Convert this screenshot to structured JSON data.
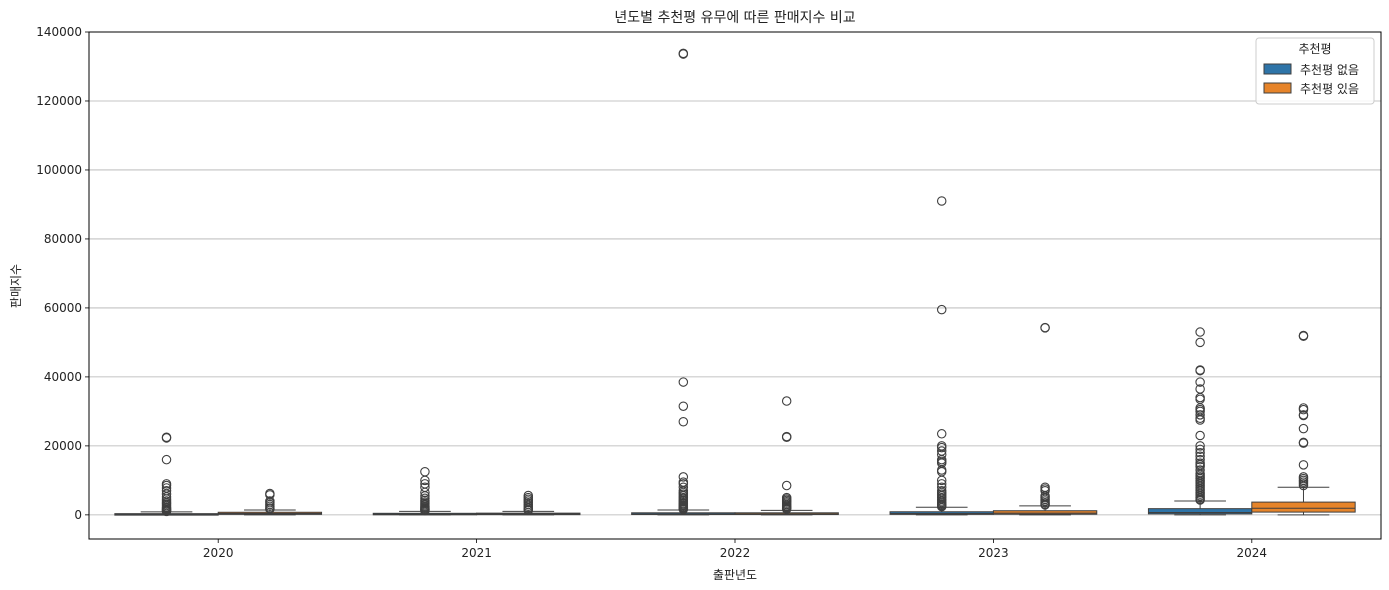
{
  "chart_data": {
    "type": "box",
    "title": "년도별 추천평 유무에 따른 판매지수 비교",
    "xlabel": "출판년도",
    "ylabel": "판매지수",
    "categories": [
      "2020",
      "2021",
      "2022",
      "2023",
      "2024"
    ],
    "ylim": [
      -7000,
      140000
    ],
    "yticks": [
      0,
      20000,
      40000,
      60000,
      80000,
      100000,
      120000,
      140000
    ],
    "ytick_labels": [
      "0",
      "20000",
      "40000",
      "60000",
      "80000",
      "100000",
      "120000",
      "140000"
    ],
    "grid": "horizontal",
    "legend": {
      "title": "추천평",
      "placement": "top-right"
    },
    "series": [
      {
        "name": "추천평 없음",
        "color": "#2e74a8",
        "boxes": [
          {
            "q1": 50,
            "median": 150,
            "q3": 350,
            "whisker_low": 0,
            "whisker_high": 850,
            "outliers": [
              22500,
              22300,
              16000,
              9000,
              8500,
              7800,
              7000,
              6000,
              5200,
              4600,
              4000,
              3500,
              3100,
              2700,
              2300,
              2000,
              1700,
              1400,
              1200,
              1000
            ]
          },
          {
            "q1": 80,
            "median": 200,
            "q3": 450,
            "whisker_low": 0,
            "whisker_high": 1000,
            "outliers": [
              12500,
              10000,
              9000,
              8000,
              6500,
              5500,
              4800,
              4200,
              3700,
              3300,
              2900,
              2500,
              2200,
              1900,
              1600,
              1400,
              1200
            ]
          },
          {
            "q1": 100,
            "median": 250,
            "q3": 600,
            "whisker_low": 0,
            "whisker_high": 1400,
            "outliers": [
              133800,
              133600,
              38500,
              31500,
              27000,
              11000,
              9500,
              9000,
              8000,
              7000,
              6500,
              6000,
              5500,
              5000,
              4600,
              4200,
              3800,
              3400,
              3100,
              2800,
              2500,
              2200,
              2000,
              1800,
              1600
            ]
          },
          {
            "q1": 150,
            "median": 400,
            "q3": 900,
            "whisker_low": 0,
            "whisker_high": 2200,
            "outliers": [
              91000,
              59500,
              23500,
              20000,
              19500,
              18500,
              17500,
              16000,
              15500,
              15000,
              13000,
              12500,
              10000,
              9000,
              8000,
              7000,
              6500,
              6000,
              5500,
              5000,
              4500,
              4000,
              3600,
              3200,
              2900,
              2600,
              2400
            ]
          },
          {
            "q1": 300,
            "median": 700,
            "q3": 1800,
            "whisker_low": 0,
            "whisker_high": 4000,
            "outliers": [
              53000,
              50000,
              42000,
              41800,
              38500,
              36500,
              34000,
              33500,
              31000,
              30500,
              30000,
              29000,
              28000,
              27500,
              23000,
              20000,
              19000,
              18000,
              17000,
              16000,
              15000,
              14500,
              14000,
              13000,
              12000,
              11500,
              11000,
              10500,
              10000,
              9500,
              9000,
              8500,
              8000,
              7500,
              7000,
              6500,
              6000,
              5500,
              5000,
              4600,
              4300
            ]
          }
        ]
      },
      {
        "name": "추천평 있음",
        "color": "#e6842a",
        "boxes": [
          {
            "q1": 150,
            "median": 400,
            "q3": 750,
            "whisker_low": 0,
            "whisker_high": 1400,
            "outliers": [
              6200,
              5800,
              4000,
              3500,
              3000,
              2500,
              2000,
              1700
            ]
          },
          {
            "q1": 100,
            "median": 250,
            "q3": 500,
            "whisker_low": 0,
            "whisker_high": 1000,
            "outliers": [
              5600,
              5000,
              4500,
              4000,
              3500,
              3000,
              2500,
              2000,
              1600,
              1300
            ]
          },
          {
            "q1": 100,
            "median": 300,
            "q3": 600,
            "whisker_low": 0,
            "whisker_high": 1300,
            "outliers": [
              33000,
              22700,
              22500,
              8500,
              5000,
              4600,
              4200,
              3800,
              3400,
              3000,
              2600,
              2300,
              2000,
              1700
            ]
          },
          {
            "q1": 200,
            "median": 500,
            "q3": 1200,
            "whisker_low": 0,
            "whisker_high": 2600,
            "outliers": [
              54300,
              54200,
              8000,
              7500,
              7000,
              5500,
              5000,
              4500,
              4000,
              3500,
              3100,
              2900
            ]
          },
          {
            "q1": 800,
            "median": 1900,
            "q3": 3700,
            "whisker_low": 0,
            "whisker_high": 8000,
            "outliers": [
              52000,
              51800,
              31000,
              30500,
              29000,
              28800,
              25000,
              21000,
              20800,
              14500,
              11000,
              10500,
              10000,
              9500,
              9000,
              8500
            ]
          }
        ]
      }
    ]
  }
}
